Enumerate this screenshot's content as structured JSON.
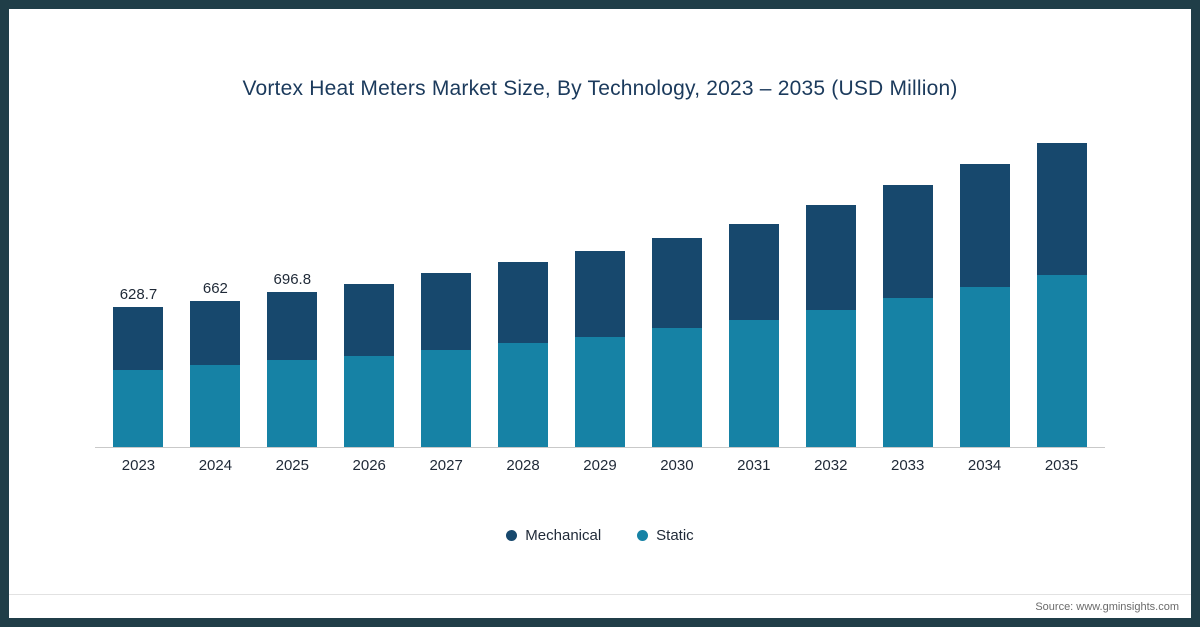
{
  "frame": {
    "border_color": "#203e48",
    "background": "#ffffff"
  },
  "chart": {
    "title": "Vortex Heat Meters Market Size, By Technology, 2023 – 2035 (USD Million)",
    "source": "Source: www.gminsights.com",
    "legend": [
      {
        "label": "Mechanical",
        "color": "#17486d"
      },
      {
        "label": "Static",
        "color": "#1682a5"
      }
    ]
  },
  "chart_data": {
    "type": "bar",
    "stacked": true,
    "title": "Vortex Heat Meters Market Size, By Technology, 2023 – 2035 (USD Million)",
    "xlabel": "",
    "ylabel": "USD Million",
    "categories": [
      "2023",
      "2024",
      "2025",
      "2026",
      "2027",
      "2028",
      "2029",
      "2030",
      "2031",
      "2032",
      "2033",
      "2034",
      "2035"
    ],
    "series": [
      {
        "name": "Mechanical",
        "color": "#17486d",
        "values": [
          282.7,
          290.0,
          305.8,
          327,
          348,
          368,
          390,
          408,
          434,
          474,
          511,
          556,
          596
        ]
      },
      {
        "name": "Static",
        "color": "#1682a5",
        "values": [
          346.0,
          372.0,
          391.0,
          413,
          440,
          470,
          498,
          538,
          574,
          619,
          672,
          722,
          776
        ]
      }
    ],
    "totals": [
      628.7,
      662,
      696.8,
      740,
      788,
      838,
      888,
      946,
      1008,
      1093,
      1183,
      1278,
      1372
    ],
    "bar_total_labels": [
      "628.7",
      "662",
      "696.8",
      "",
      "",
      "",
      "",
      "",
      "",
      "",
      "",
      "",
      ""
    ],
    "ylim": [
      0,
      1400
    ],
    "grid": false,
    "legend_position": "bottom"
  }
}
